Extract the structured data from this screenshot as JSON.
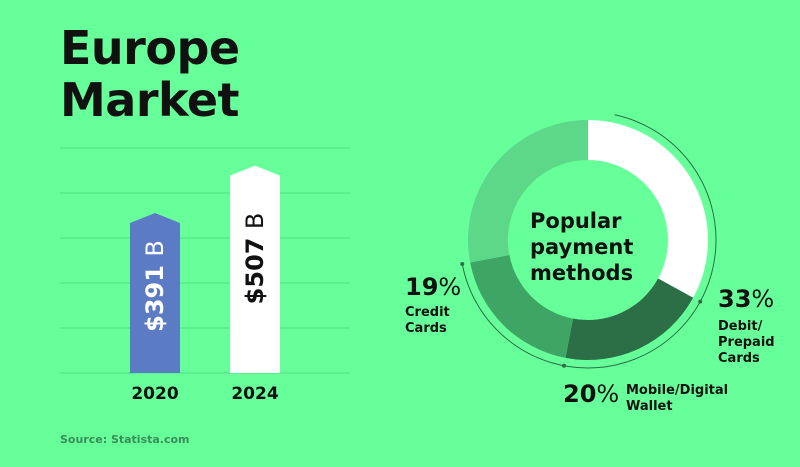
{
  "title_lines": [
    "Europe",
    "Market"
  ],
  "source": "Source: Statista.com",
  "colors": {
    "background": "#66ff99",
    "bar_2020": "#5b7bc4",
    "bar_2024": "#ffffff",
    "donut_center": "#66ff99",
    "slice_debit": "#ffffff",
    "slice_mobile": "#2c6e45",
    "slice_credit": "#3fa565",
    "slice_other": "#5cd888",
    "gridline": "#4fe084",
    "text": "#111111"
  },
  "chart_data": [
    {
      "type": "bar",
      "categories": [
        "2020",
        "2024"
      ],
      "values": [
        391,
        507
      ],
      "labels": [
        "$391 B",
        "$507 B"
      ],
      "title": "Europe Market",
      "xlabel": "",
      "ylabel": "",
      "ylim": [
        0,
        550
      ],
      "grid": true
    },
    {
      "type": "pie",
      "title": "Popular payment methods",
      "title_lines": [
        "Popular",
        "payment",
        "methods"
      ],
      "slices": [
        {
          "label_lines": [
            "Debit/",
            "Prepaid",
            "Cards"
          ],
          "value": 33,
          "pct_text": "33%"
        },
        {
          "label_lines": [
            "Mobile/Digital",
            "Wallet"
          ],
          "value": 20,
          "pct_text": "20%"
        },
        {
          "label_lines": [
            "Credit",
            "Cards"
          ],
          "value": 19,
          "pct_text": "19%"
        },
        {
          "label_lines": [],
          "value": 28,
          "pct_text": ""
        }
      ]
    }
  ]
}
